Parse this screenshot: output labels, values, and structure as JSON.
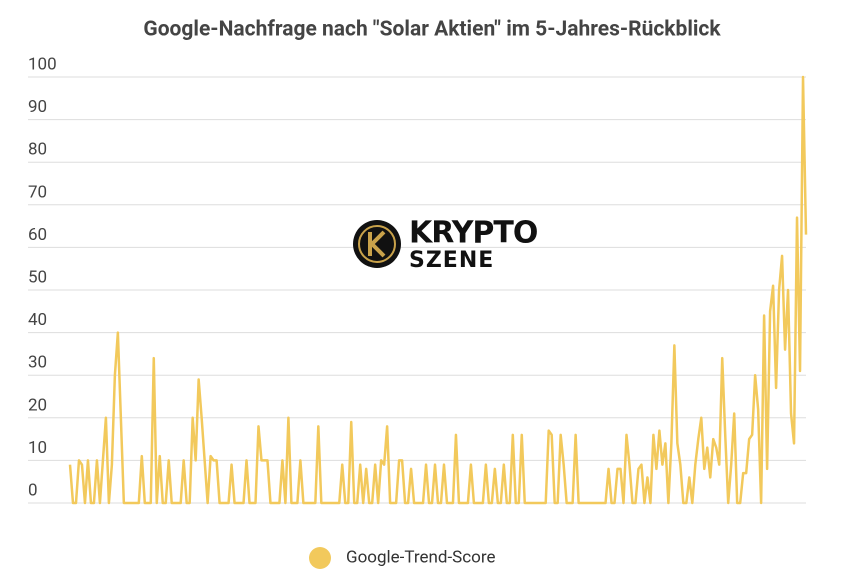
{
  "chart_data": {
    "type": "line",
    "title": "Google-Nachfrage nach \"Solar Aktien\" im 5-Jahres-Rückblick",
    "annotations": [
      "KRYPTO",
      "SZENE"
    ],
    "series": [
      {
        "name": "Google-Trend-Score",
        "color": "#f2c95c",
        "values": [
          9,
          0,
          0,
          10,
          9,
          0,
          10,
          0,
          0,
          10,
          0,
          10,
          20,
          0,
          9,
          30,
          40,
          20,
          0,
          0,
          0,
          0,
          0,
          0,
          11,
          0,
          0,
          0,
          34,
          0,
          11,
          0,
          0,
          10,
          0,
          0,
          0,
          0,
          10,
          0,
          0,
          20,
          10,
          29,
          20,
          10,
          0,
          11,
          10,
          10,
          0,
          0,
          0,
          0,
          9,
          0,
          0,
          0,
          0,
          10,
          0,
          0,
          0,
          18,
          10,
          10,
          10,
          0,
          0,
          0,
          0,
          10,
          0,
          20,
          0,
          0,
          0,
          10,
          0,
          0,
          0,
          0,
          0,
          18,
          0,
          0,
          0,
          0,
          0,
          0,
          0,
          9,
          0,
          0,
          19,
          0,
          0,
          9,
          0,
          8,
          0,
          0,
          9,
          0,
          10,
          9,
          18,
          0,
          0,
          0,
          10,
          10,
          0,
          0,
          8,
          0,
          0,
          0,
          0,
          9,
          0,
          0,
          9,
          0,
          0,
          9,
          0,
          0,
          0,
          16,
          0,
          0,
          0,
          0,
          9,
          0,
          0,
          0,
          0,
          9,
          0,
          0,
          8,
          0,
          0,
          9,
          0,
          0,
          16,
          0,
          0,
          16,
          0,
          0,
          0,
          0,
          0,
          0,
          0,
          0,
          17,
          16,
          0,
          0,
          16,
          9,
          0,
          0,
          0,
          16,
          0,
          0,
          0,
          0,
          0,
          0,
          0,
          0,
          0,
          0,
          8,
          0,
          0,
          8,
          8,
          0,
          16,
          9,
          0,
          0,
          8,
          9,
          0,
          6,
          0,
          16,
          8,
          17,
          9,
          14,
          0,
          14,
          37,
          14,
          9,
          0,
          0,
          6,
          0,
          9,
          15,
          20,
          8,
          13,
          6,
          15,
          13,
          9,
          34,
          16,
          0,
          9,
          21,
          0,
          0,
          7,
          7,
          15,
          16,
          30,
          22,
          0,
          44,
          8,
          45,
          51,
          27,
          50,
          58,
          36,
          50,
          21,
          14,
          67,
          31,
          100,
          63
        ]
      }
    ],
    "ylim": [
      0,
      100
    ],
    "yticks": [
      0,
      10,
      20,
      30,
      40,
      50,
      60,
      70,
      80,
      90,
      100
    ],
    "grid": true,
    "legend": "bottom"
  }
}
